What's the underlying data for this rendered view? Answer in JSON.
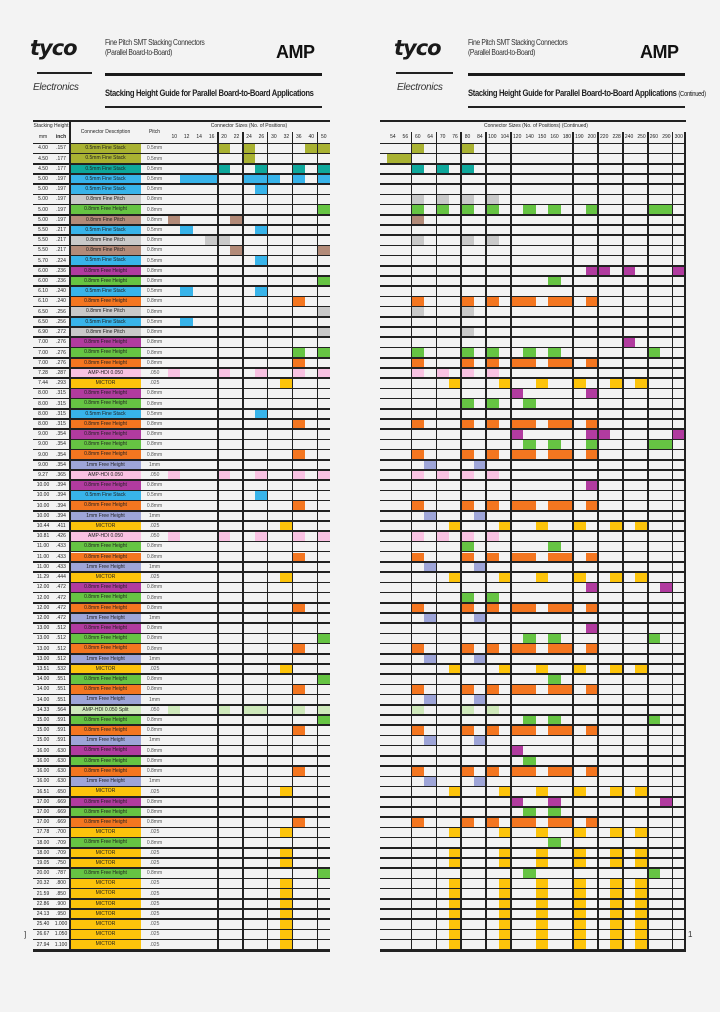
{
  "header": {
    "logo": "tyco",
    "logo_sub": "Electronics",
    "title_line1": "Fine Pitch SMT Stacking Connectors",
    "title_line2": "(Parallel Board-to-Board)",
    "brand": "AMP",
    "subtitle": "Stacking Height Guide for Parallel Board-to-Board Applications",
    "continued": "(Continued)"
  },
  "table": {
    "stacking_height": "Stacking Height",
    "mm": "mm",
    "inch": "inch",
    "description": "Connector Description",
    "pitch": "Pitch",
    "sizes_title": "Connector Sizes (No. of Positions)",
    "sizes_title_right": "Connector Sizes (No. of Positions) (Continued)",
    "left_sizes": [
      "10",
      "12",
      "14",
      "16",
      "20",
      "22",
      "24",
      "26",
      "30",
      "32",
      "36",
      "40",
      "50"
    ],
    "right_sizes": [
      "54",
      "56",
      "60",
      "64",
      "70",
      "76",
      "80",
      "84",
      "100",
      "104",
      "120",
      "140",
      "150",
      "160",
      "180",
      "190",
      "200",
      "220",
      "228",
      "240",
      "250",
      "260",
      "290",
      "300"
    ]
  },
  "colors": {
    "olive": "#a9b232",
    "teal": "#0fa89c",
    "blue": "#38b4ea",
    "gray": "#c9c9c9",
    "green": "#66c443",
    "brown": "#b38b79",
    "purple": "#b13b9f",
    "orange": "#f47620",
    "pink": "#f9c2e2",
    "yellow": "#fdc40b",
    "lavender": "#9ea5d8",
    "lightgreen": "#cfe9bb"
  },
  "types": {
    "olive": {
      "desc": "0.5mm Fine Stack",
      "pitch": "0.5mm"
    },
    "teal": {
      "desc": "0.5mm Fine Stack",
      "pitch": "0.5mm"
    },
    "blue": {
      "desc": "0.5mm Fine Stack",
      "pitch": "0.5mm"
    },
    "gray": {
      "desc": "0.8mm Fine Pitch",
      "pitch": "0.8mm"
    },
    "brown": {
      "desc": "0.8mm Fine Pitch",
      "pitch": "0.8mm"
    },
    "green": {
      "desc": "0.8mm Free Height",
      "pitch": "0.8mm"
    },
    "purple": {
      "desc": "0.8mm Free Height",
      "pitch": "0.8mm"
    },
    "orange": {
      "desc": "0.8mm Free Height",
      "pitch": "0.8mm"
    },
    "pink": {
      "desc": "AMP-HDI 0.050",
      "pitch": ".050"
    },
    "yellow": {
      "desc": "MICTOR",
      "pitch": ".025"
    },
    "lavender": {
      "desc": "1mm Free Height",
      "pitch": "1mm"
    },
    "lightgreen": {
      "desc": "AMP-HDI 0.050 Split",
      "pitch": ".050"
    }
  },
  "rows": [
    {
      "mm": "4.00",
      "inch": ".157",
      "type": "olive",
      "left": [
        "20",
        "24",
        "40",
        "50"
      ],
      "right": [
        "60",
        "80"
      ]
    },
    {
      "mm": "4.50",
      "inch": ".177",
      "type": "olive",
      "left": [
        "24"
      ],
      "right": [
        "54",
        "56"
      ]
    },
    {
      "mm": "4.50",
      "inch": ".177",
      "type": "teal",
      "left": [
        "20",
        "26",
        "36",
        "50"
      ],
      "right": [
        "60",
        "70",
        "80"
      ]
    },
    {
      "mm": "5.00",
      "inch": ".197",
      "type": "blue",
      "left": [
        "12",
        "14",
        "16",
        "24",
        "26",
        "30",
        "36",
        "50"
      ],
      "right": []
    },
    {
      "mm": "5.00",
      "inch": ".197",
      "type": "blue",
      "left": [
        "26"
      ],
      "right": []
    },
    {
      "mm": "5.00",
      "inch": ".197",
      "type": "gray",
      "left": [],
      "right": [
        "60",
        "70",
        "80",
        "100"
      ]
    },
    {
      "mm": "5.00",
      "inch": ".197",
      "type": "green",
      "left": [
        "50"
      ],
      "right": [
        "60",
        "70",
        "80",
        "100",
        "140",
        "160",
        "200",
        "260",
        "290"
      ]
    },
    {
      "mm": "5.00",
      "inch": ".197",
      "type": "brown",
      "left": [
        "10",
        "22"
      ],
      "right": [
        "60"
      ]
    },
    {
      "mm": "5.50",
      "inch": ".217",
      "type": "blue",
      "left": [
        "12",
        "26"
      ],
      "right": []
    },
    {
      "mm": "5.50",
      "inch": ".217",
      "type": "gray",
      "left": [
        "16",
        "20"
      ],
      "right": [
        "60",
        "80",
        "100"
      ]
    },
    {
      "mm": "5.50",
      "inch": ".217",
      "type": "brown",
      "left": [
        "22",
        "50"
      ],
      "right": []
    },
    {
      "mm": "5.70",
      "inch": ".224",
      "type": "blue",
      "left": [
        "26"
      ],
      "right": []
    },
    {
      "mm": "6.00",
      "inch": ".236",
      "type": "purple",
      "left": [],
      "right": [
        "200",
        "220",
        "240",
        "300"
      ]
    },
    {
      "mm": "6.00",
      "inch": ".236",
      "type": "green",
      "left": [
        "50"
      ],
      "right": [
        "160"
      ]
    },
    {
      "mm": "6.10",
      "inch": ".240",
      "type": "blue",
      "left": [
        "12",
        "26"
      ],
      "right": []
    },
    {
      "mm": "6.10",
      "inch": ".240",
      "type": "orange",
      "left": [
        "36"
      ],
      "right": [
        "60",
        "80",
        "100",
        "120",
        "140",
        "160",
        "180",
        "200"
      ]
    },
    {
      "mm": "6.50",
      "inch": ".256",
      "type": "gray",
      "left": [
        "50"
      ],
      "right": [
        "60",
        "80"
      ]
    },
    {
      "mm": "6.50",
      "inch": ".256",
      "type": "blue",
      "left": [
        "12"
      ],
      "right": []
    },
    {
      "mm": "6.90",
      "inch": ".272",
      "type": "gray",
      "left": [
        "50"
      ],
      "right": [
        "80"
      ]
    },
    {
      "mm": "7.00",
      "inch": ".276",
      "type": "purple",
      "left": [],
      "right": [
        "240"
      ]
    },
    {
      "mm": "7.00",
      "inch": ".276",
      "type": "green",
      "left": [
        "36",
        "50"
      ],
      "right": [
        "60",
        "80",
        "100",
        "140",
        "160",
        "260"
      ]
    },
    {
      "mm": "7.00",
      "inch": ".276",
      "type": "orange",
      "left": [
        "36"
      ],
      "right": [
        "60",
        "80",
        "100",
        "120",
        "140",
        "160",
        "180",
        "200"
      ]
    },
    {
      "mm": "7.28",
      "inch": ".287",
      "type": "pink",
      "left": [
        "10",
        "20",
        "26",
        "36",
        "50"
      ],
      "right": [
        "60",
        "70",
        "80",
        "100"
      ]
    },
    {
      "mm": "7.44",
      "inch": ".293",
      "type": "yellow",
      "left": [
        "32"
      ],
      "right": [
        "76",
        "104",
        "150",
        "190",
        "228",
        "250"
      ]
    },
    {
      "mm": "8.00",
      "inch": ".315",
      "type": "purple",
      "left": [],
      "right": [
        "120",
        "200"
      ]
    },
    {
      "mm": "8.00",
      "inch": ".315",
      "type": "green",
      "left": [],
      "right": [
        "80",
        "100",
        "140"
      ]
    },
    {
      "mm": "8.00",
      "inch": ".315",
      "type": "blue",
      "left": [
        "26"
      ],
      "right": []
    },
    {
      "mm": "8.00",
      "inch": ".315",
      "type": "orange",
      "left": [
        "36"
      ],
      "right": [
        "60",
        "80",
        "100",
        "120",
        "140",
        "160",
        "180",
        "200"
      ]
    },
    {
      "mm": "9.00",
      "inch": ".354",
      "type": "purple",
      "left": [],
      "right": [
        "120",
        "200",
        "220",
        "300"
      ]
    },
    {
      "mm": "9.00",
      "inch": ".354",
      "type": "green",
      "left": [],
      "right": [
        "140",
        "160",
        "200",
        "260",
        "290"
      ]
    },
    {
      "mm": "9.00",
      "inch": ".354",
      "type": "orange",
      "left": [
        "36"
      ],
      "right": [
        "60",
        "80",
        "100",
        "120",
        "140",
        "160",
        "180",
        "200"
      ]
    },
    {
      "mm": "9.00",
      "inch": ".354",
      "type": "lavender",
      "left": [],
      "right": [
        "64",
        "84"
      ]
    },
    {
      "mm": "9.27",
      "inch": ".365",
      "type": "pink",
      "left": [
        "10",
        "20",
        "26",
        "36",
        "50"
      ],
      "right": [
        "60",
        "70",
        "80",
        "100"
      ]
    },
    {
      "mm": "10.00",
      "inch": ".394",
      "type": "purple",
      "left": [],
      "right": [
        "200"
      ]
    },
    {
      "mm": "10.00",
      "inch": ".394",
      "type": "blue",
      "left": [
        "26"
      ],
      "right": []
    },
    {
      "mm": "10.00",
      "inch": ".394",
      "type": "orange",
      "left": [
        "36"
      ],
      "right": [
        "60",
        "80",
        "100",
        "120",
        "140",
        "160",
        "180",
        "200"
      ]
    },
    {
      "mm": "10.00",
      "inch": ".394",
      "type": "lavender",
      "left": [],
      "right": [
        "64",
        "84"
      ]
    },
    {
      "mm": "10.44",
      "inch": ".411",
      "type": "yellow",
      "left": [
        "32"
      ],
      "right": [
        "76",
        "104",
        "150",
        "190",
        "228",
        "250"
      ]
    },
    {
      "mm": "10.81",
      "inch": ".426",
      "type": "pink",
      "left": [
        "10",
        "20",
        "26",
        "36",
        "50"
      ],
      "right": [
        "60",
        "70",
        "80",
        "100"
      ]
    },
    {
      "mm": "11.00",
      "inch": ".433",
      "type": "green",
      "left": [],
      "right": [
        "80",
        "160"
      ]
    },
    {
      "mm": "11.00",
      "inch": ".433",
      "type": "orange",
      "left": [
        "36"
      ],
      "right": [
        "60",
        "80",
        "100",
        "120",
        "140",
        "160",
        "180",
        "200"
      ]
    },
    {
      "mm": "11.00",
      "inch": ".433",
      "type": "lavender",
      "left": [],
      "right": [
        "64",
        "84"
      ]
    },
    {
      "mm": "11.29",
      "inch": ".444",
      "type": "yellow",
      "left": [
        "32"
      ],
      "right": [
        "76",
        "104",
        "150",
        "190",
        "228",
        "250"
      ]
    },
    {
      "mm": "12.00",
      "inch": ".472",
      "type": "purple",
      "left": [],
      "right": [
        "200",
        "290"
      ]
    },
    {
      "mm": "12.00",
      "inch": ".472",
      "type": "green",
      "left": [],
      "right": [
        "80",
        "100"
      ]
    },
    {
      "mm": "12.00",
      "inch": ".472",
      "type": "orange",
      "left": [
        "36"
      ],
      "right": [
        "60",
        "80",
        "100",
        "120",
        "140",
        "160",
        "180",
        "200"
      ]
    },
    {
      "mm": "12.00",
      "inch": ".472",
      "type": "lavender",
      "left": [],
      "right": [
        "64",
        "84"
      ]
    },
    {
      "mm": "13.00",
      "inch": ".512",
      "type": "purple",
      "left": [],
      "right": [
        "200"
      ]
    },
    {
      "mm": "13.00",
      "inch": ".512",
      "type": "green",
      "left": [
        "50"
      ],
      "right": [
        "140",
        "160",
        "260"
      ]
    },
    {
      "mm": "13.00",
      "inch": ".512",
      "type": "orange",
      "left": [
        "36"
      ],
      "right": [
        "60",
        "80",
        "100",
        "120",
        "140",
        "160",
        "180",
        "200"
      ]
    },
    {
      "mm": "13.00",
      "inch": ".512",
      "type": "lavender",
      "left": [],
      "right": [
        "64",
        "84"
      ]
    },
    {
      "mm": "13.51",
      "inch": ".532",
      "type": "yellow",
      "left": [
        "32"
      ],
      "right": [
        "76",
        "104",
        "150",
        "190",
        "228",
        "250"
      ]
    },
    {
      "mm": "14.00",
      "inch": ".551",
      "type": "green",
      "left": [
        "50"
      ],
      "right": [
        "160"
      ]
    },
    {
      "mm": "14.00",
      "inch": ".551",
      "type": "orange",
      "left": [
        "36"
      ],
      "right": [
        "60",
        "80",
        "100",
        "120",
        "140",
        "160",
        "180",
        "200"
      ]
    },
    {
      "mm": "14.00",
      "inch": ".551",
      "type": "lavender",
      "left": [],
      "right": [
        "64",
        "84"
      ]
    },
    {
      "mm": "14.33",
      "inch": ".564",
      "type": "lightgreen",
      "left": [
        "10",
        "20",
        "24",
        "26",
        "36",
        "50"
      ],
      "right": [
        "60",
        "80",
        "100"
      ]
    },
    {
      "mm": "15.00",
      "inch": ".591",
      "type": "green",
      "left": [
        "50"
      ],
      "right": [
        "140",
        "160",
        "260"
      ]
    },
    {
      "mm": "15.00",
      "inch": ".591",
      "type": "orange",
      "left": [
        "36"
      ],
      "right": [
        "60",
        "80",
        "100",
        "120",
        "140",
        "160",
        "180",
        "200"
      ]
    },
    {
      "mm": "15.00",
      "inch": ".591",
      "type": "lavender",
      "left": [],
      "right": [
        "64",
        "84"
      ]
    },
    {
      "mm": "16.00",
      "inch": ".630",
      "type": "purple",
      "left": [],
      "right": [
        "120"
      ]
    },
    {
      "mm": "16.00",
      "inch": ".630",
      "type": "green",
      "left": [],
      "right": [
        "140"
      ]
    },
    {
      "mm": "16.00",
      "inch": ".630",
      "type": "orange",
      "left": [
        "36"
      ],
      "right": [
        "60",
        "80",
        "100",
        "120",
        "140",
        "160",
        "180",
        "200"
      ]
    },
    {
      "mm": "16.00",
      "inch": ".630",
      "type": "lavender",
      "left": [],
      "right": [
        "64",
        "84"
      ]
    },
    {
      "mm": "16.51",
      "inch": ".650",
      "type": "yellow",
      "left": [
        "32"
      ],
      "right": [
        "76",
        "104",
        "150",
        "190",
        "228",
        "250"
      ]
    },
    {
      "mm": "17.00",
      "inch": ".669",
      "type": "purple",
      "left": [],
      "right": [
        "120",
        "160",
        "290"
      ]
    },
    {
      "mm": "17.00",
      "inch": ".669",
      "type": "green",
      "left": [],
      "right": [
        "140",
        "160"
      ]
    },
    {
      "mm": "17.00",
      "inch": ".669",
      "type": "orange",
      "left": [
        "36"
      ],
      "right": [
        "60",
        "80",
        "100",
        "120",
        "140",
        "160",
        "180",
        "200"
      ]
    },
    {
      "mm": "17.78",
      "inch": ".700",
      "type": "yellow",
      "left": [
        "32"
      ],
      "right": [
        "76",
        "104",
        "150",
        "190",
        "228",
        "250"
      ]
    },
    {
      "mm": "18.00",
      "inch": ".709",
      "type": "green",
      "left": [],
      "right": [
        "160"
      ]
    },
    {
      "mm": "18.00",
      "inch": ".709",
      "type": "yellow",
      "left": [
        "32"
      ],
      "right": [
        "76",
        "104",
        "150",
        "190",
        "228",
        "250"
      ]
    },
    {
      "mm": "19.05",
      "inch": ".750",
      "type": "yellow",
      "left": [
        "32"
      ],
      "right": [
        "76",
        "104",
        "150",
        "190",
        "228",
        "250"
      ]
    },
    {
      "mm": "20.00",
      "inch": ".787",
      "type": "green",
      "left": [
        "50"
      ],
      "right": [
        "140",
        "260"
      ]
    },
    {
      "mm": "20.32",
      "inch": ".800",
      "type": "yellow",
      "left": [
        "32"
      ],
      "right": [
        "76",
        "104",
        "150",
        "190",
        "228",
        "250"
      ]
    },
    {
      "mm": "21.59",
      "inch": ".850",
      "type": "yellow",
      "left": [
        "32"
      ],
      "right": [
        "76",
        "104",
        "150",
        "190",
        "228",
        "250"
      ]
    },
    {
      "mm": "22.86",
      "inch": ".900",
      "type": "yellow",
      "left": [
        "32"
      ],
      "right": [
        "76",
        "104",
        "150",
        "190",
        "228",
        "250"
      ]
    },
    {
      "mm": "24.13",
      "inch": ".950",
      "type": "yellow",
      "left": [
        "32"
      ],
      "right": [
        "76",
        "104",
        "150",
        "190",
        "228",
        "250"
      ]
    },
    {
      "mm": "25.40",
      "inch": "1.000",
      "type": "yellow",
      "left": [
        "32"
      ],
      "right": [
        "76",
        "104",
        "150",
        "190",
        "228",
        "250"
      ]
    },
    {
      "mm": "26.67",
      "inch": "1.050",
      "type": "yellow",
      "left": [
        "32"
      ],
      "right": [
        "76",
        "104",
        "150",
        "190",
        "228",
        "250"
      ]
    },
    {
      "mm": "27.94",
      "inch": "1.100",
      "type": "yellow",
      "left": [
        "32"
      ],
      "right": [
        "76",
        "104",
        "150",
        "190",
        "228",
        "250"
      ]
    }
  ],
  "page_marks": {
    "left": "]",
    "right": "1"
  }
}
